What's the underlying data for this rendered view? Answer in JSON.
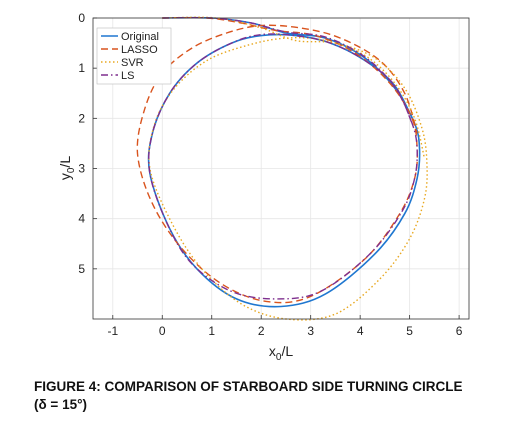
{
  "chart_data": {
    "type": "line",
    "title": "",
    "xlabel": "x",
    "xlabel_sub": "0",
    "xlabel_suffix": "/L",
    "ylabel": "y",
    "ylabel_sub": "0",
    "ylabel_suffix": "/L",
    "xlim": [
      -1.4,
      6.2
    ],
    "ylim": [
      0,
      6
    ],
    "y_inverted": true,
    "grid": true,
    "legend_position": "top-left",
    "xticks": [
      -1,
      0,
      1,
      2,
      3,
      4,
      5,
      6
    ],
    "yticks": [
      0,
      1,
      2,
      3,
      4,
      5
    ],
    "series": [
      {
        "name": "Original",
        "color": "#1f77d0",
        "style": "solid",
        "x": [
          0.0,
          1.0,
          1.8,
          2.5,
          3.3,
          4.1,
          4.7,
          5.1,
          5.2,
          5.15,
          4.9,
          4.3,
          3.3,
          2.4,
          1.5,
          0.7,
          0.15,
          -0.25,
          -0.2,
          0.15,
          0.7,
          1.4,
          2.0,
          2.7,
          3.4,
          4.1,
          4.7,
          5.1
        ],
        "y": [
          0.0,
          0.0,
          0.1,
          0.3,
          0.4,
          0.8,
          1.4,
          2.1,
          2.6,
          3.2,
          3.9,
          4.7,
          5.5,
          5.75,
          5.6,
          5.0,
          4.2,
          3.1,
          2.3,
          1.5,
          0.9,
          0.5,
          0.35,
          0.35,
          0.5,
          0.85,
          1.35,
          2.1
        ]
      },
      {
        "name": "LASSO",
        "color": "#d9541e",
        "style": "dashed",
        "x": [
          0.0,
          0.9,
          1.6,
          2.3,
          3.1,
          3.9,
          4.6,
          5.05,
          5.15,
          5.1,
          4.8,
          4.1,
          3.0,
          2.1,
          1.2,
          0.4,
          -0.2,
          -0.5,
          -0.35,
          0.0,
          0.6,
          1.3,
          2.0,
          2.8,
          3.6,
          4.4,
          4.9,
          5.15
        ],
        "y": [
          0.0,
          0.0,
          0.1,
          0.25,
          0.35,
          0.7,
          1.3,
          2.0,
          2.6,
          3.2,
          3.9,
          4.8,
          5.55,
          5.65,
          5.3,
          4.6,
          3.7,
          2.7,
          1.8,
          1.1,
          0.6,
          0.3,
          0.15,
          0.2,
          0.4,
          0.85,
          1.5,
          2.3
        ]
      },
      {
        "name": "SVR",
        "color": "#e8a820",
        "style": "dotted",
        "x": [
          0.0,
          1.1,
          2.0,
          2.7,
          3.5,
          4.3,
          4.9,
          5.25,
          5.35,
          5.3,
          5.0,
          4.4,
          3.5,
          2.5,
          1.6,
          0.8,
          0.2,
          -0.25,
          -0.15,
          0.25,
          0.9,
          1.7,
          2.5,
          3.3,
          4.1,
          4.7,
          5.1,
          5.3
        ],
        "y": [
          0.0,
          0.0,
          0.2,
          0.45,
          0.5,
          0.8,
          1.4,
          2.2,
          2.9,
          3.6,
          4.4,
          5.2,
          5.9,
          6.0,
          5.7,
          5.0,
          4.1,
          3.0,
          2.1,
          1.4,
          0.85,
          0.55,
          0.4,
          0.45,
          0.75,
          1.3,
          2.0,
          2.8
        ]
      },
      {
        "name": "LS",
        "color": "#7e2f8e",
        "style": "dashdot",
        "x": [
          0.0,
          1.0,
          1.8,
          2.5,
          3.3,
          4.1,
          4.7,
          5.05,
          5.15,
          5.1,
          4.85,
          4.2,
          3.2,
          2.3,
          1.4,
          0.6,
          0.1,
          -0.25,
          -0.2,
          0.15,
          0.7,
          1.4,
          2.0,
          2.7,
          3.4,
          4.1,
          4.7,
          5.05
        ],
        "y": [
          0.0,
          0.0,
          0.1,
          0.28,
          0.38,
          0.78,
          1.38,
          2.1,
          2.6,
          3.2,
          3.85,
          4.7,
          5.45,
          5.6,
          5.45,
          4.9,
          4.1,
          3.1,
          2.3,
          1.5,
          0.9,
          0.5,
          0.33,
          0.35,
          0.5,
          0.85,
          1.35,
          2.1
        ]
      }
    ]
  },
  "caption": {
    "line1": "FIGURE 4:  COMPARISON OF STARBOARD SIDE TURNING CIRCLE",
    "line2": "(δ = 15°)"
  }
}
